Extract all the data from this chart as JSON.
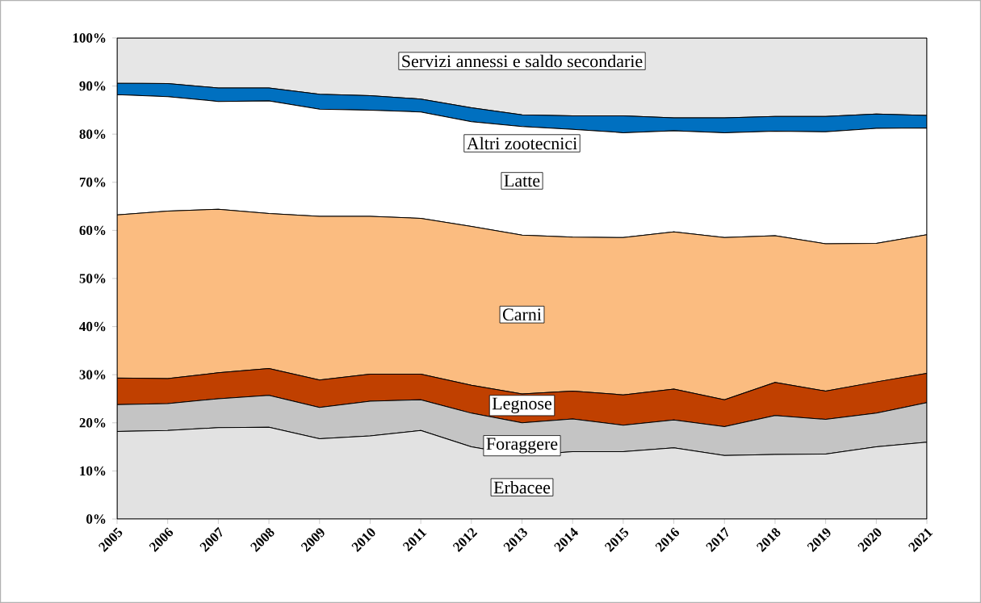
{
  "chart_data": {
    "type": "area",
    "stacked": true,
    "legend": false,
    "grid": false,
    "x": [
      2005,
      2006,
      2007,
      2008,
      2009,
      2010,
      2011,
      2012,
      2013,
      2014,
      2015,
      2016,
      2017,
      2018,
      2019,
      2020,
      2021
    ],
    "xlim": [
      2005,
      2021
    ],
    "xticks": [
      2005,
      2006,
      2007,
      2008,
      2009,
      2010,
      2011,
      2012,
      2013,
      2014,
      2015,
      2016,
      2017,
      2018,
      2019,
      2020,
      2021
    ],
    "ylim": [
      0,
      100
    ],
    "yticks": [
      {
        "value": 0,
        "label": "0%"
      },
      {
        "value": 10,
        "label": "10%"
      },
      {
        "value": 20,
        "label": "20%"
      },
      {
        "value": 30,
        "label": "30%"
      },
      {
        "value": 40,
        "label": "40%"
      },
      {
        "value": 50,
        "label": "50%"
      },
      {
        "value": 60,
        "label": "60%"
      },
      {
        "value": 70,
        "label": "70%"
      },
      {
        "value": 80,
        "label": "80%"
      },
      {
        "value": 90,
        "label": "90%"
      },
      {
        "value": 100,
        "label": "100%"
      }
    ],
    "series": [
      {
        "name": "Erbacee",
        "color": "#e2e2e2",
        "values": [
          18.2,
          18.4,
          19.0,
          19.1,
          16.7,
          17.3,
          18.4,
          15.0,
          13.2,
          14.0,
          14.0,
          14.8,
          13.2,
          13.4,
          13.5,
          15.0,
          16.0
        ]
      },
      {
        "name": "Foraggere",
        "color": "#c4c4c4",
        "values": [
          5.6,
          5.6,
          6.0,
          6.6,
          6.5,
          7.2,
          6.4,
          7.0,
          6.8,
          6.8,
          5.5,
          5.8,
          6.0,
          8.1,
          7.2,
          7.0,
          8.2
        ]
      },
      {
        "name": "Legnose",
        "color": "#c04000",
        "values": [
          5.5,
          5.2,
          5.4,
          5.6,
          5.7,
          5.6,
          5.3,
          5.8,
          6.0,
          5.8,
          6.3,
          6.4,
          5.6,
          6.9,
          5.9,
          6.5,
          6.1
        ]
      },
      {
        "name": "Carni",
        "color": "#fbbc80",
        "values": [
          33.9,
          34.8,
          34.0,
          32.2,
          34.0,
          32.8,
          32.4,
          33.0,
          33.0,
          32.0,
          32.7,
          32.7,
          33.7,
          30.5,
          30.6,
          28.8,
          28.8
        ]
      },
      {
        "name": "Latte",
        "color": "#ffffff",
        "values": [
          25.0,
          23.8,
          22.4,
          23.4,
          22.3,
          22.1,
          22.1,
          21.8,
          22.6,
          22.4,
          21.8,
          21.0,
          21.8,
          21.7,
          23.3,
          23.9,
          22.2
        ]
      },
      {
        "name": "Altri zootecnici",
        "color": "#0070c0",
        "values": [
          2.4,
          2.7,
          2.8,
          2.7,
          3.1,
          3.0,
          2.7,
          2.9,
          2.4,
          2.8,
          3.5,
          2.7,
          3.1,
          3.1,
          3.2,
          3.0,
          2.6
        ]
      },
      {
        "name": "Servizi annessi e saldo secondarie",
        "color": "#e6e6e6",
        "values": [
          9.4,
          9.5,
          10.4,
          10.4,
          11.7,
          12.0,
          12.7,
          14.5,
          16.0,
          16.2,
          16.2,
          16.6,
          16.6,
          16.3,
          16.3,
          15.8,
          16.1
        ]
      }
    ]
  }
}
